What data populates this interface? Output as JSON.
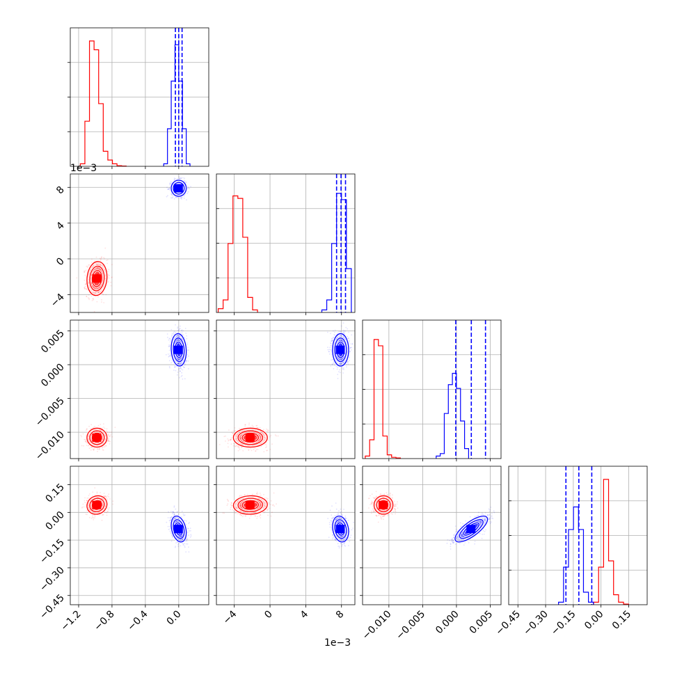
{
  "colors": {
    "red": "#ff0000",
    "blue": "#0000ff"
  },
  "offset_labels": {
    "y_param1": "1e−3",
    "x_param1": "1e−3"
  },
  "chart_data": {
    "type": "corner",
    "params": [
      {
        "ticks": [
          -1.2,
          -0.8,
          -0.4,
          0.0
        ],
        "tick_labels": [
          "−1.2",
          "−0.8",
          "−0.4",
          "0.0"
        ],
        "range": [
          -1.3,
          0.36
        ]
      },
      {
        "ticks": [
          -4,
          0,
          4,
          8
        ],
        "tick_labels": [
          "−4",
          "0",
          "4",
          "8"
        ],
        "range": [
          -6.0,
          9.5
        ]
      },
      {
        "ticks": [
          -0.01,
          -0.005,
          0.0,
          0.005
        ],
        "tick_labels": [
          "−0.010",
          "−0.005",
          "0.000",
          "0.005"
        ],
        "range": [
          -0.0139,
          0.0066
        ]
      },
      {
        "ticks": [
          -0.45,
          -0.3,
          -0.15,
          0.0,
          0.15
        ],
        "tick_labels": [
          "−0.45",
          "−0.30",
          "−0.15",
          "0.00",
          "0.15"
        ],
        "range": [
          -0.5,
          0.25
        ]
      }
    ],
    "datasets": [
      {
        "color_key": "red",
        "means": [
          -0.98,
          -2.2,
          -0.0108,
          0.04
        ],
        "sd": [
          0.06,
          0.95,
          0.0007,
          0.025
        ],
        "hist": [
          {
            "start": -1.18,
            "step": 0.055,
            "h": [
              0.02,
              0.36,
              1.0,
              0.93,
              0.5,
              0.12,
              0.05,
              0.02,
              0.005,
              0.002
            ]
          },
          {
            "start": -5.8,
            "step": 0.55,
            "h": [
              0.03,
              0.1,
              0.55,
              0.93,
              0.91,
              0.6,
              0.12,
              0.02
            ]
          },
          {
            "start": -0.0135,
            "step": 0.00065,
            "h": [
              0.02,
              0.15,
              0.95,
              0.9,
              0.18,
              0.03,
              0.01,
              0.005
            ]
          },
          {
            "start": -0.04,
            "step": 0.027,
            "h": [
              0.02,
              0.3,
              1.0,
              0.35,
              0.08,
              0.02,
              0.005
            ]
          }
        ],
        "pairs": [
          {
            "x": 0,
            "y": 1,
            "rho": 0.1
          },
          {
            "x": 0,
            "y": 2,
            "rho": 0.0
          },
          {
            "x": 0,
            "y": 3,
            "rho": 0.1
          },
          {
            "x": 1,
            "y": 2,
            "rho": 0.0
          },
          {
            "x": 1,
            "y": 3,
            "rho": 0.05
          },
          {
            "x": 2,
            "y": 3,
            "rho": 0.0
          }
        ]
      },
      {
        "color_key": "blue",
        "means": [
          0.0,
          7.9,
          0.0022,
          -0.09
        ],
        "sd": [
          0.045,
          0.45,
          0.0012,
          0.035
        ],
        "hist": [
          {
            "start": -0.18,
            "step": 0.045,
            "h": [
              0.02,
              0.3,
              0.68,
              0.97,
              0.68,
              0.3,
              0.02
            ]
          },
          {
            "start": 5.8,
            "step": 0.55,
            "h": [
              0.02,
              0.1,
              0.55,
              0.95,
              0.9,
              0.35
            ]
          },
          {
            "start": -0.003,
            "step": 0.0006,
            "h": [
              0.02,
              0.04,
              0.36,
              0.59,
              0.68,
              0.56,
              0.3,
              0.08
            ]
          },
          {
            "start": -0.23,
            "step": 0.027,
            "h": [
              0.02,
              0.3,
              0.6,
              0.78,
              0.6,
              0.1,
              0.02
            ]
          }
        ],
        "pairs": [
          {
            "x": 0,
            "y": 1,
            "rho": 0.0
          },
          {
            "x": 0,
            "y": 2,
            "rho": -0.1
          },
          {
            "x": 0,
            "y": 3,
            "rho": -0.3
          },
          {
            "x": 1,
            "y": 2,
            "rho": 0.0
          },
          {
            "x": 1,
            "y": 3,
            "rho": -0.2
          },
          {
            "x": 2,
            "y": 3,
            "rho": 0.75
          }
        ]
      }
    ],
    "quantile_lines": [
      [
        -0.04,
        0.0,
        0.04
      ],
      [
        7.45,
        7.95,
        8.45
      ],
      [
        -0.0001,
        0.0022,
        0.0043
      ],
      [
        -0.19,
        -0.12,
        -0.05
      ]
    ],
    "grid": true
  }
}
